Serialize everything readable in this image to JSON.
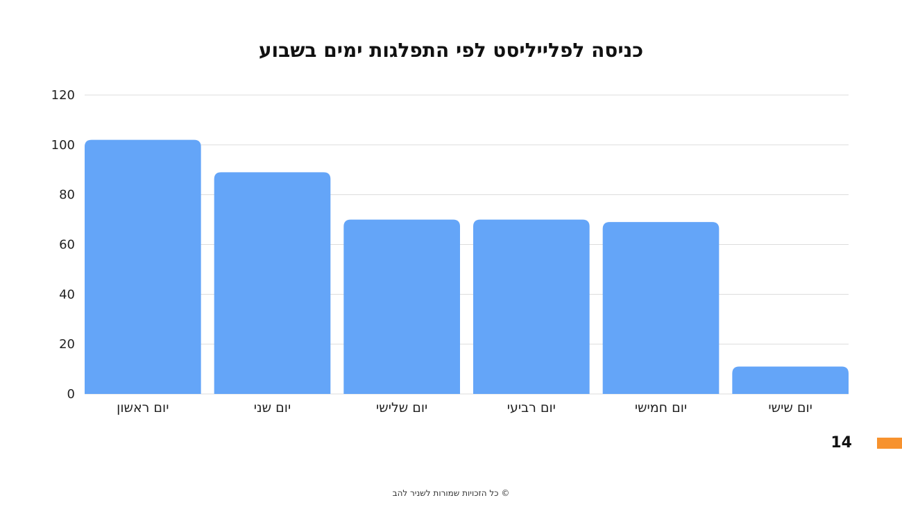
{
  "colors": {
    "bar": "#64a5f8",
    "grid": "#dcdcdc",
    "accent": "#f7922e",
    "text": "#222222"
  },
  "chart_data": {
    "type": "bar",
    "title": "כניסה לפלייליסט לפי התפלגות ימים בשבוע",
    "xlabel": "",
    "ylabel": "",
    "categories": [
      "יום ראשון",
      "יום שני",
      "יום שלישי",
      "יום רביעי",
      "יום חמישי",
      "יום שישי"
    ],
    "values": [
      102,
      89,
      70,
      70,
      69,
      11
    ],
    "ylim": [
      0,
      120
    ],
    "yticks": [
      0,
      20,
      40,
      60,
      80,
      100,
      120
    ],
    "grid": true,
    "legend": "none"
  },
  "slide": {
    "page_number": "14",
    "footer": "© כל הזכויות שמורות לשניר להב"
  }
}
